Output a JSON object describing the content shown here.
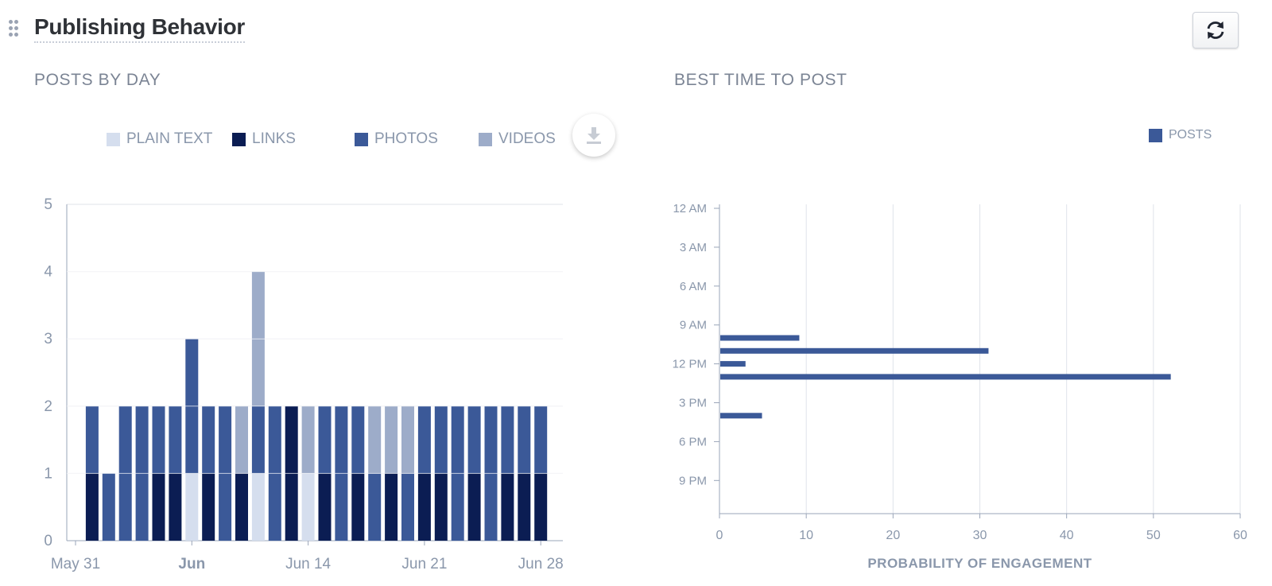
{
  "panel": {
    "title": "Publishing Behavior"
  },
  "icons": {
    "drag": "drag-handle-icon",
    "refresh": "refresh-icon",
    "download": "download-icon"
  },
  "colors": {
    "plain_text": "#d5deee",
    "links": "#0b1d53",
    "photos": "#3b5998",
    "videos": "#9dacc9",
    "posts": "#3b5998",
    "grid": "#dfe3ea",
    "axis": "#9aa5b8"
  },
  "chart_data": [
    {
      "type": "bar",
      "stacked": true,
      "title": "POSTS BY DAY",
      "legend": [
        "PLAIN TEXT",
        "LINKS",
        "PHOTOS",
        "VIDEOS"
      ],
      "legend_position": "top",
      "ylim": [
        0,
        5
      ],
      "yticks": [
        0,
        1,
        2,
        3,
        4,
        5
      ],
      "grid": true,
      "x_start": "2020-05-31",
      "x_ticks": [
        {
          "label": "May 31",
          "date": "2020-05-31",
          "bold": false
        },
        {
          "label": "Jun",
          "date": "2020-06-07",
          "bold": true
        },
        {
          "label": "Jun 14",
          "date": "2020-06-14",
          "bold": false
        },
        {
          "label": "Jun 21",
          "date": "2020-06-21",
          "bold": false
        },
        {
          "label": "Jun 28",
          "date": "2020-06-28",
          "bold": false
        }
      ],
      "categories": [
        "2020-06-01",
        "2020-06-02",
        "2020-06-03",
        "2020-06-04",
        "2020-06-05",
        "2020-06-06",
        "2020-06-07",
        "2020-06-08",
        "2020-06-09",
        "2020-06-10",
        "2020-06-11",
        "2020-06-12",
        "2020-06-13",
        "2020-06-14",
        "2020-06-15",
        "2020-06-16",
        "2020-06-17",
        "2020-06-18",
        "2020-06-19",
        "2020-06-20",
        "2020-06-21",
        "2020-06-22",
        "2020-06-23",
        "2020-06-24",
        "2020-06-25",
        "2020-06-26",
        "2020-06-27",
        "2020-06-28"
      ],
      "series": [
        {
          "name": "PLAIN TEXT",
          "values": [
            0,
            0,
            0,
            0,
            0,
            0,
            1,
            0,
            0,
            0,
            1,
            0,
            0,
            1,
            0,
            0,
            0,
            0,
            0,
            0,
            0,
            0,
            0,
            0,
            0,
            0,
            0,
            0
          ]
        },
        {
          "name": "LINKS",
          "values": [
            1,
            0,
            0,
            0,
            1,
            1,
            0,
            1,
            0,
            1,
            0,
            0,
            2,
            0,
            1,
            0,
            1,
            0,
            1,
            0,
            1,
            1,
            0,
            1,
            0,
            1,
            1,
            1
          ]
        },
        {
          "name": "PHOTOS",
          "values": [
            1,
            1,
            2,
            2,
            1,
            1,
            2,
            1,
            2,
            0,
            1,
            2,
            0,
            0,
            1,
            2,
            1,
            1,
            0,
            1,
            1,
            1,
            2,
            1,
            2,
            1,
            1,
            1
          ]
        },
        {
          "name": "VIDEOS",
          "values": [
            0,
            0,
            0,
            0,
            0,
            0,
            0,
            0,
            0,
            1,
            2,
            0,
            0,
            1,
            0,
            0,
            0,
            1,
            1,
            1,
            0,
            0,
            0,
            0,
            0,
            0,
            0,
            0
          ]
        }
      ]
    },
    {
      "type": "bar",
      "orientation": "horizontal",
      "title": "BEST TIME TO POST",
      "legend": [
        "POSTS"
      ],
      "legend_position": "top-right",
      "xlabel": "PROBABILITY OF ENGAGEMENT",
      "xlim": [
        0,
        60
      ],
      "xticks": [
        0,
        10,
        20,
        30,
        40,
        50,
        60
      ],
      "y_tick_labels": [
        "12 AM",
        "3 AM",
        "6 AM",
        "9 AM",
        "12 PM",
        "3 PM",
        "6 PM",
        "9 PM"
      ],
      "y_tick_hours": [
        0,
        3,
        6,
        9,
        12,
        15,
        18,
        21
      ],
      "y_range_hours": [
        0,
        24
      ],
      "grid": true,
      "series": [
        {
          "name": "POSTS",
          "points": [
            {
              "hour": 10,
              "value": 9.2
            },
            {
              "hour": 11,
              "value": 31
            },
            {
              "hour": 12,
              "value": 3
            },
            {
              "hour": 13,
              "value": 52
            },
            {
              "hour": 16,
              "value": 4.9
            }
          ]
        }
      ]
    }
  ]
}
